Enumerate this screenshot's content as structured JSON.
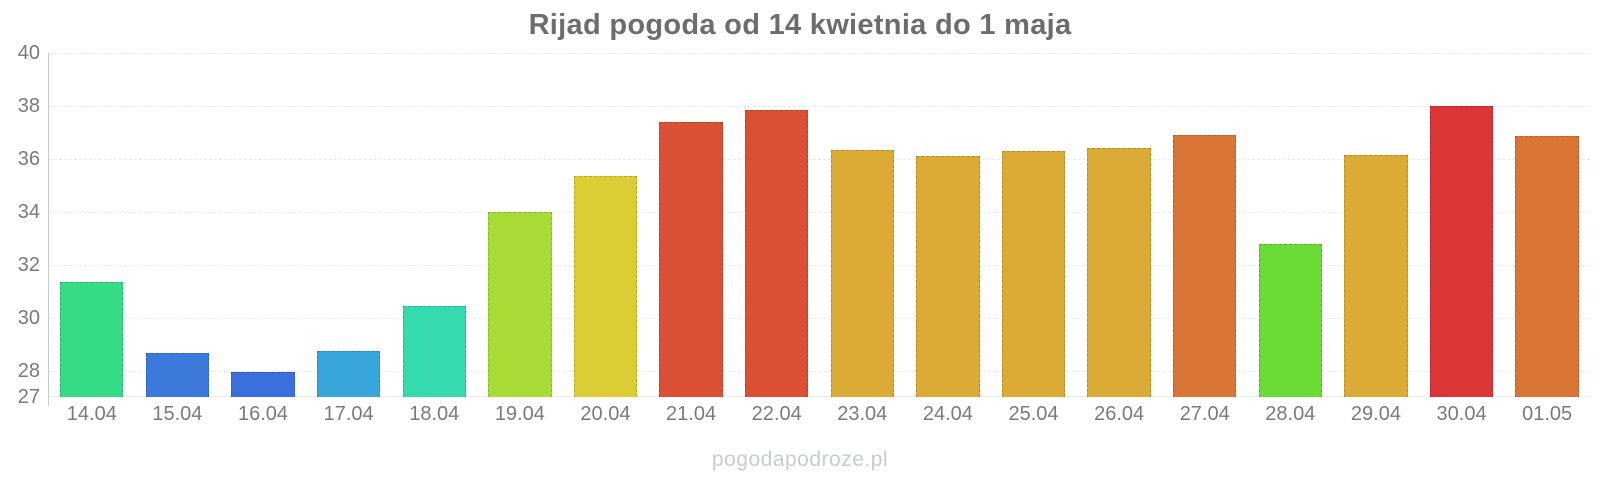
{
  "title": "Rijad pogoda od 14 kwietnia do 1 maja",
  "watermark": "pogodapodroze.pl",
  "chart_data": {
    "type": "bar",
    "title": "Rijad pogoda od 14 kwietnia do 1 maja",
    "categories": [
      "14.04",
      "15.04",
      "16.04",
      "17.04",
      "18.04",
      "19.04",
      "20.04",
      "21.04",
      "22.04",
      "23.04",
      "24.04",
      "25.04",
      "26.04",
      "27.04",
      "28.04",
      "29.04",
      "30.04",
      "01.05"
    ],
    "values": [
      31.35,
      28.65,
      27.95,
      28.75,
      30.45,
      34.0,
      35.35,
      37.4,
      37.85,
      36.35,
      36.1,
      36.3,
      36.4,
      36.9,
      32.8,
      36.15,
      38.0,
      36.85
    ],
    "bar_colors": [
      "#35DB85",
      "#3B79DB",
      "#3B6FDB",
      "#36A6DB",
      "#35DBAE",
      "#A8DB35",
      "#DBCE35",
      "#DB4F35",
      "#DB4F35",
      "#DBAB35",
      "#DBAB35",
      "#DBAB35",
      "#DBAB35",
      "#DB7535",
      "#6BDB35",
      "#DBAB35",
      "#DB3535",
      "#DB7535"
    ],
    "xlabel": "",
    "ylabel": "",
    "ylim": [
      27,
      40
    ],
    "yticks": [
      40,
      38,
      36,
      34,
      32,
      30,
      28,
      27
    ],
    "gridlines": [
      40,
      38,
      36,
      34,
      32,
      30,
      28
    ],
    "grid": "horizontal-dashed",
    "legend_position": "none"
  },
  "colors": {
    "title_text": "#6d6d6d",
    "tick_text": "#7a7a7a",
    "axis_line": "#c9c9c9",
    "gridline": "#e9e9e9",
    "watermark_text": "#c7cccf",
    "background": "#ffffff"
  }
}
